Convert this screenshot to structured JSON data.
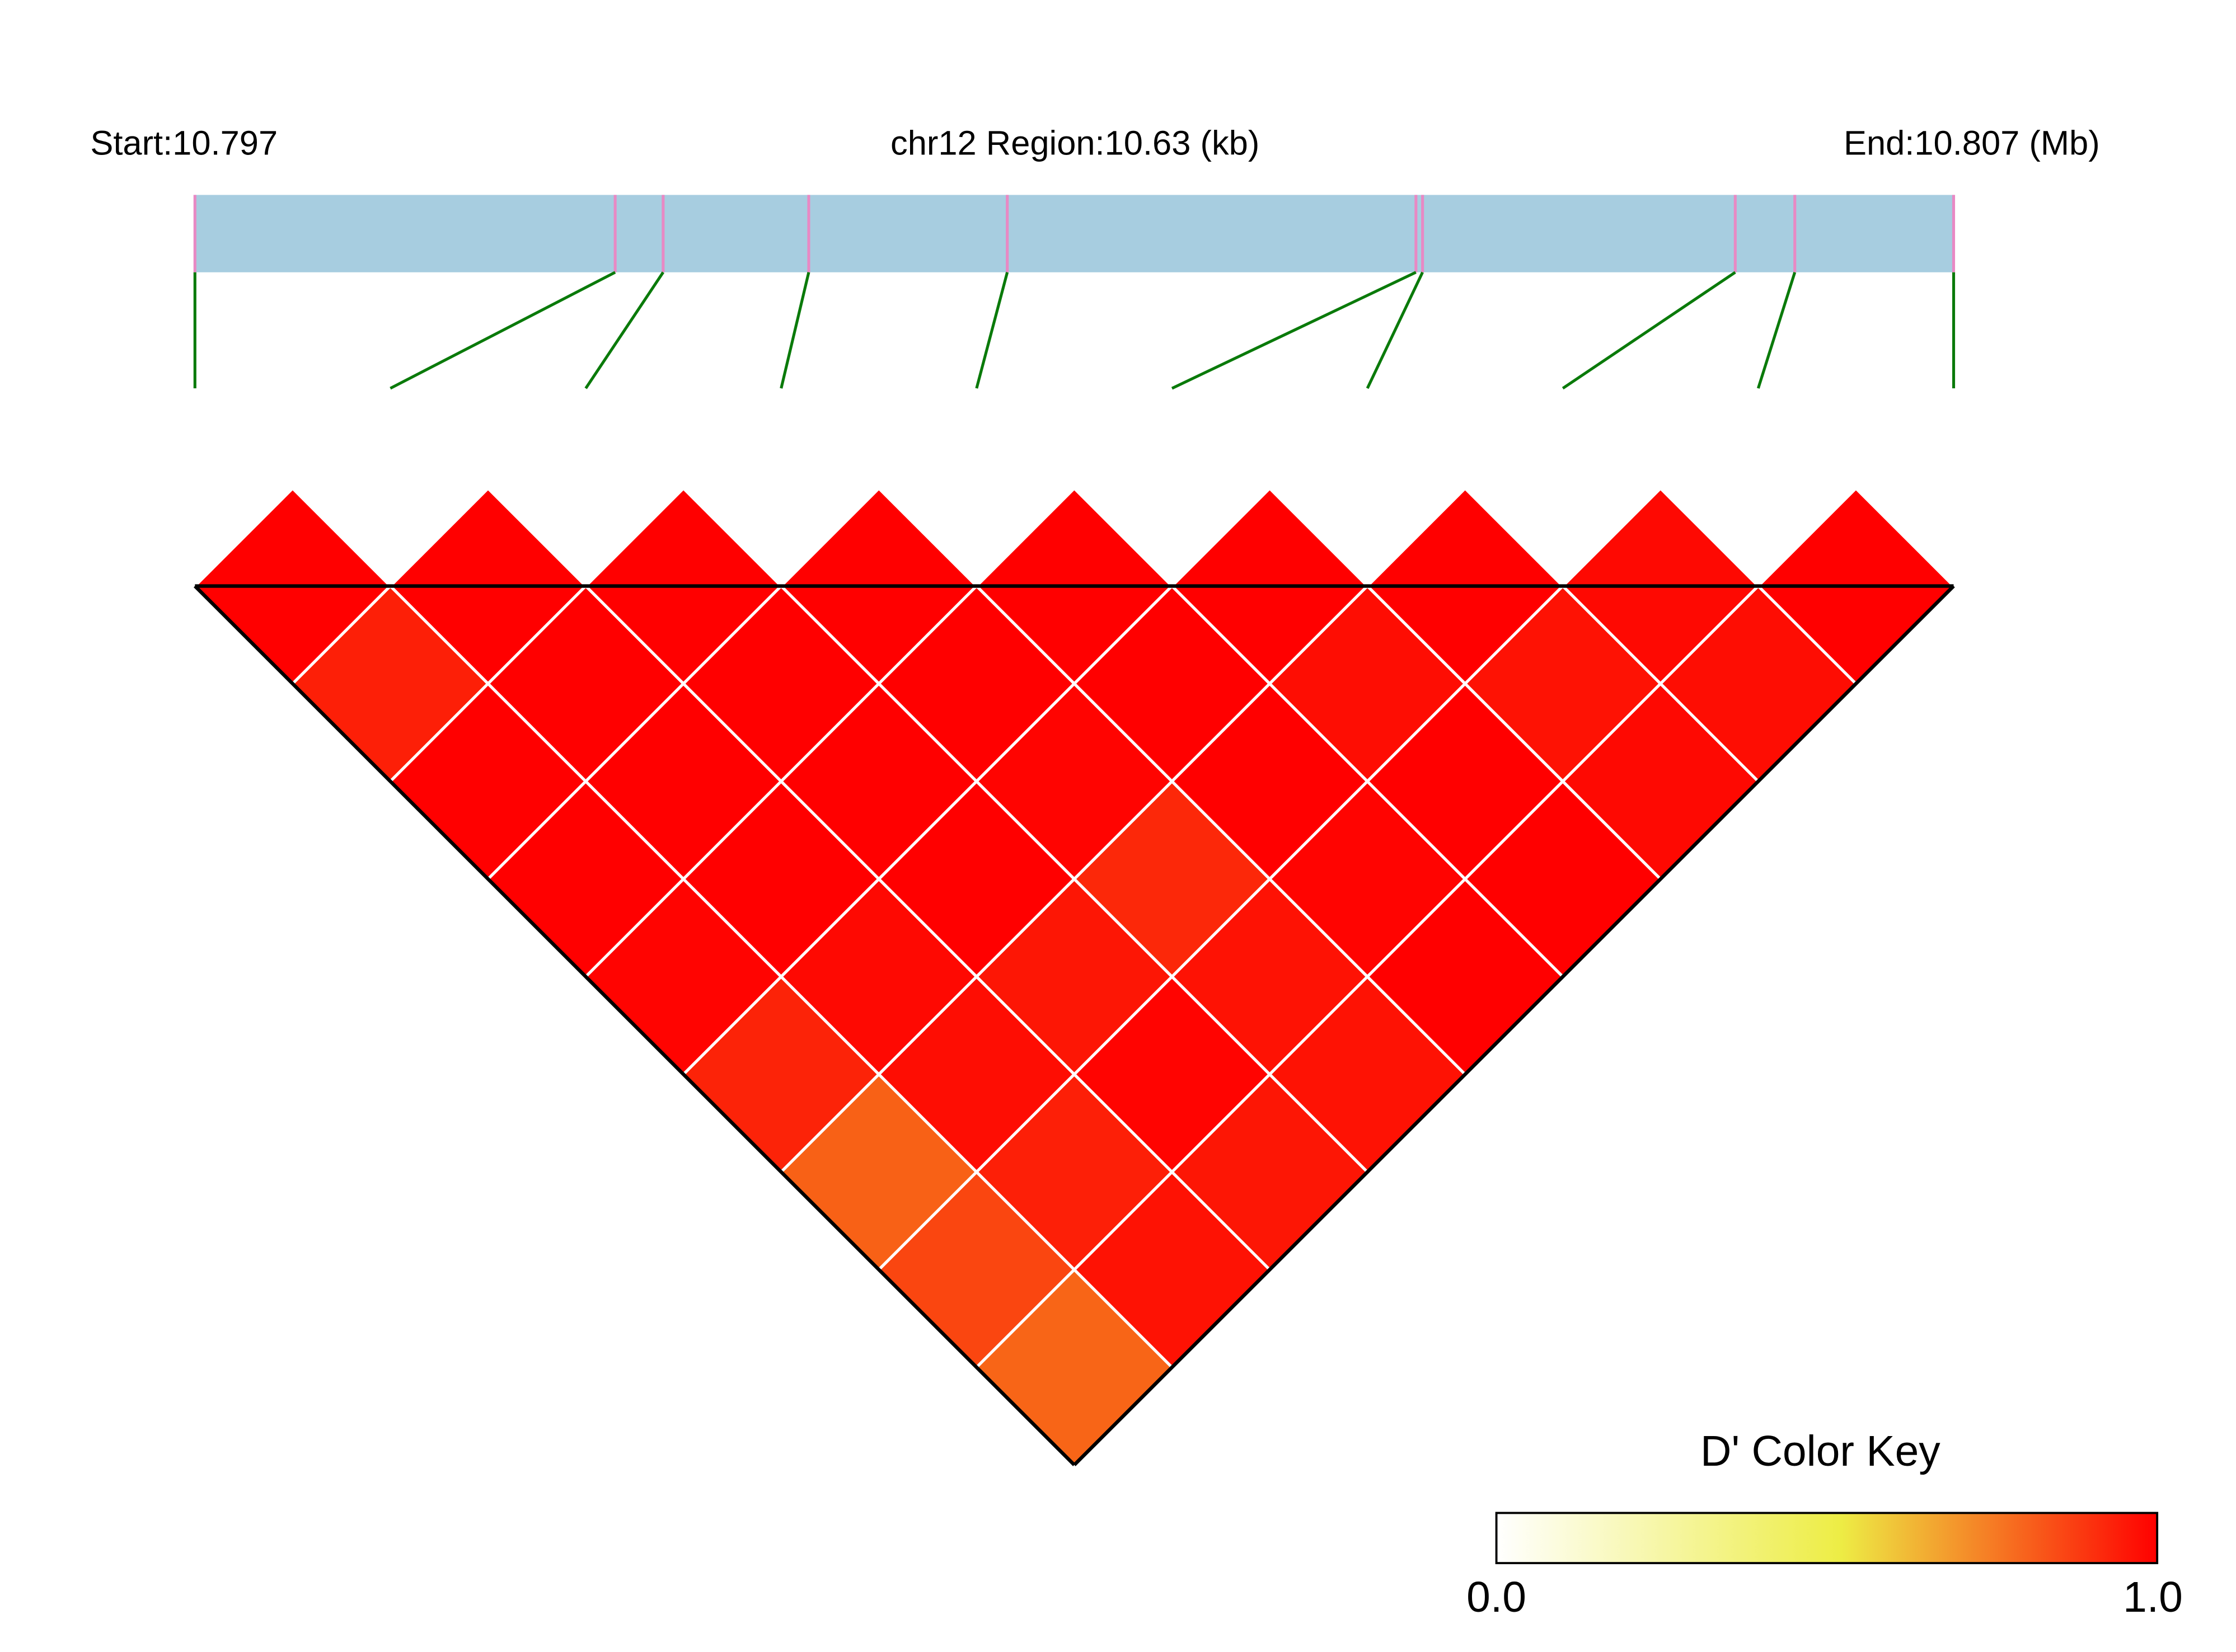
{
  "header": {
    "start_label": "Start:10.797",
    "region_label": "chr12 Region:10.63 (kb)",
    "end_label": "End:10.807 (Mb)"
  },
  "legend": {
    "title": "D' Color Key",
    "min_label": "0.0",
    "max_label": "1.0"
  },
  "colors": {
    "track_fill": "#a7cde0",
    "snp_tick": "#e889c4",
    "connector": "#0a7a0a",
    "cell_border": "#ffffff",
    "outline": "#000000",
    "key_low": "#ffffff",
    "key_mid": "#eded45",
    "key_high": "#ff0000"
  },
  "chart_data": {
    "type": "heatmap",
    "description_free": true,
    "region_start_mb": 10.797,
    "region_end_mb": 10.807,
    "region_length_kb": 10.63,
    "chromosome": "chr12",
    "snp_positions_mb": [
      10.797,
      10.79954,
      10.79983,
      10.80071,
      10.80191,
      10.80438,
      10.80442,
      10.80631,
      10.80667,
      10.80763
    ],
    "metric": "D'",
    "value_range": [
      0.0,
      1.0
    ],
    "d_prime": [
      [
        1.0,
        0.93,
        1.0,
        1.0,
        0.99,
        0.92,
        0.78,
        0.84,
        0.77
      ],
      [
        1.0,
        1.0,
        1.0,
        1.0,
        0.98,
        0.97,
        0.93,
        0.96
      ],
      [
        1.0,
        1.0,
        1.0,
        1.0,
        0.95,
        0.99,
        0.95
      ],
      [
        1.0,
        1.0,
        0.99,
        0.91,
        0.96,
        0.96
      ],
      [
        1.0,
        1.0,
        1.0,
        0.99,
        1.0
      ],
      [
        1.0,
        0.97,
        1.0,
        1.0
      ],
      [
        1.0,
        0.96,
        0.98
      ],
      [
        0.98,
        0.97
      ],
      [
        1.0
      ]
    ]
  }
}
